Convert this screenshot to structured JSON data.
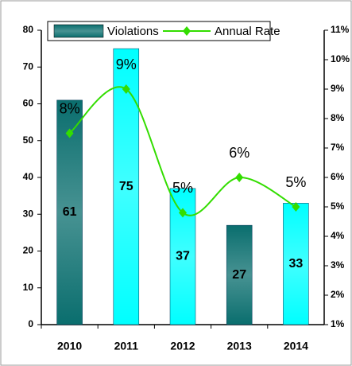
{
  "chart_data": {
    "type": "bar-line",
    "categories": [
      "2010",
      "2011",
      "2012",
      "2013",
      "2014"
    ],
    "series": [
      {
        "name": "Violations",
        "type": "bar",
        "colors": [
          "#0a6e6e",
          "#00ffff",
          "#00ffff",
          "#0a6e6e",
          "#00ffff"
        ],
        "legend_color": "#0a6e6e",
        "values": [
          61,
          75,
          37,
          27,
          33
        ]
      },
      {
        "name": "Annual Rate",
        "type": "line",
        "axis": "y2",
        "color": "#33dd00",
        "values": [
          7.5,
          9.0,
          4.8,
          6.0,
          5.0
        ],
        "value_labels": [
          "8%",
          "9%",
          "5%",
          "6%",
          "5%"
        ]
      }
    ],
    "ylim": [
      0,
      80
    ],
    "yticks": [
      0,
      10,
      20,
      30,
      40,
      50,
      60,
      70,
      80
    ],
    "y2lim": [
      1,
      11
    ],
    "y2ticks": [
      {
        "value": 1,
        "label": "1%"
      },
      {
        "value": 2,
        "label": "2%"
      },
      {
        "value": 3,
        "label": "3%"
      },
      {
        "value": 4,
        "label": "4%"
      },
      {
        "value": 5,
        "label": "5%"
      },
      {
        "value": 6,
        "label": "6%"
      },
      {
        "value": 7,
        "label": "7%"
      },
      {
        "value": 8,
        "label": "8%"
      },
      {
        "value": 9,
        "label": "9%"
      },
      {
        "value": 10,
        "label": "10%"
      },
      {
        "value": 11,
        "label": "11%"
      }
    ],
    "legend": "top"
  }
}
